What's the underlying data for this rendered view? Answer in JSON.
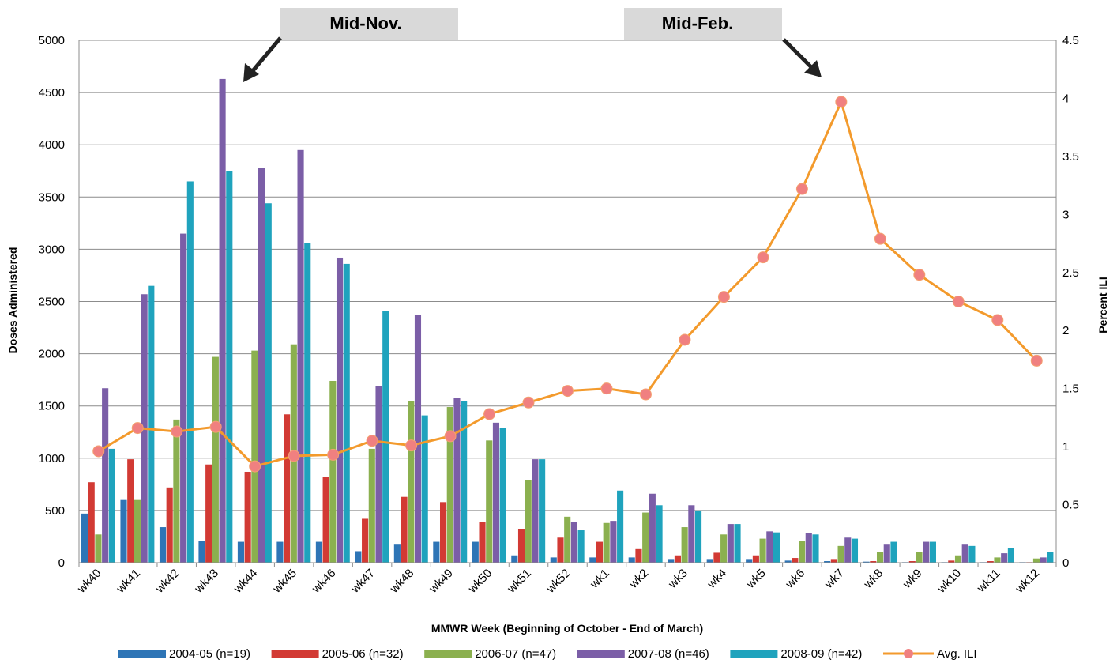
{
  "chart_data": {
    "type": "bar",
    "title": "",
    "xlabel": "MMWR  Week (Beginning of October - End of March)",
    "ylabel": "Doses Administered",
    "y2label": "Percent ILI",
    "ylim": [
      0,
      5000
    ],
    "y2lim": [
      0,
      4.5
    ],
    "yticks": [
      "0",
      "500",
      "1000",
      "1500",
      "2000",
      "2500",
      "3000",
      "3500",
      "4000",
      "4500",
      "5000"
    ],
    "y2ticks": [
      "0",
      "0.5",
      "1",
      "1.5",
      "2",
      "2.5",
      "3",
      "3.5",
      "4",
      "4.5"
    ],
    "grid": true,
    "legend_position": "bottom",
    "categories": [
      "wk40",
      "wk41",
      "wk42",
      "wk43",
      "wk44",
      "wk45",
      "wk46",
      "wk47",
      "wk48",
      "wk49",
      "wk50",
      "wk51",
      "wk52",
      "wk1",
      "wk2",
      "wk3",
      "wk4",
      "wk5",
      "wk6",
      "wk7",
      "wk8",
      "wk9",
      "wk10",
      "wk11",
      "wk12"
    ],
    "series": [
      {
        "name": "2004-05 (n=19)",
        "color": "#2e75b6",
        "kind": "bar",
        "values": [
          470,
          600,
          340,
          210,
          200,
          200,
          200,
          110,
          180,
          200,
          200,
          70,
          50,
          50,
          50,
          35,
          35,
          35,
          20,
          15,
          10,
          5,
          5,
          5,
          5
        ]
      },
      {
        "name": "2005-06 (n=32)",
        "color": "#d23a34",
        "kind": "bar",
        "values": [
          770,
          990,
          720,
          940,
          870,
          1420,
          820,
          420,
          630,
          580,
          390,
          320,
          240,
          200,
          130,
          70,
          95,
          70,
          45,
          35,
          15,
          15,
          20,
          15,
          5
        ]
      },
      {
        "name": "2006-07 (n=47)",
        "color": "#8bb04f",
        "kind": "bar",
        "values": [
          270,
          600,
          1370,
          1970,
          2030,
          2090,
          1740,
          1090,
          1550,
          1490,
          1170,
          790,
          440,
          380,
          480,
          340,
          270,
          230,
          210,
          160,
          100,
          100,
          70,
          50,
          40
        ]
      },
      {
        "name": "2007-08 (n=46)",
        "color": "#7b5ea7",
        "kind": "bar",
        "values": [
          1670,
          2570,
          3150,
          4630,
          3780,
          3950,
          2920,
          1690,
          2370,
          1580,
          1340,
          990,
          390,
          400,
          660,
          550,
          370,
          300,
          280,
          240,
          180,
          200,
          180,
          90,
          50
        ]
      },
      {
        "name": "2008-09 (n=42)",
        "color": "#1fa3bd",
        "kind": "bar",
        "values": [
          1090,
          2650,
          3650,
          3750,
          3440,
          3060,
          2860,
          2410,
          1410,
          1550,
          1290,
          990,
          310,
          690,
          550,
          500,
          370,
          290,
          270,
          230,
          200,
          200,
          160,
          140,
          100
        ]
      },
      {
        "name": "Avg. ILI",
        "color": "#f39a2c",
        "marker": "#f08080",
        "kind": "line",
        "axis": "right",
        "values": [
          0.96,
          1.16,
          1.13,
          1.17,
          0.83,
          0.92,
          0.93,
          1.05,
          1.01,
          1.09,
          1.28,
          1.38,
          1.48,
          1.5,
          1.45,
          1.92,
          2.29,
          2.63,
          3.22,
          3.97,
          2.79,
          2.48,
          2.25,
          2.09,
          1.74
        ]
      }
    ],
    "annotations": [
      {
        "id": "mid-nov",
        "text": "Mid-Nov."
      },
      {
        "id": "mid-feb",
        "text": "Mid-Feb."
      }
    ]
  }
}
